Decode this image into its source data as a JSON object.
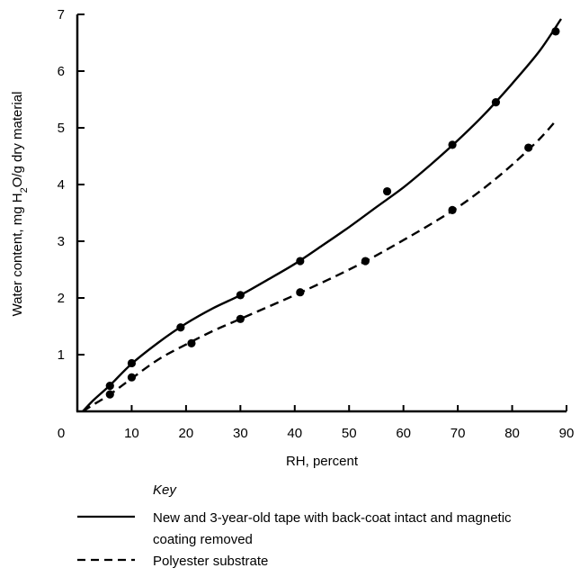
{
  "chart_data": {
    "type": "line",
    "xlabel": "RH, percent",
    "ylabel": "Water content, mg H2O/g dry material",
    "xlim": [
      0,
      90
    ],
    "ylim": [
      0,
      7
    ],
    "x_ticks": [
      "0",
      "10",
      "20",
      "30",
      "40",
      "50",
      "60",
      "70",
      "80",
      "90"
    ],
    "y_ticks": [
      "1",
      "2",
      "3",
      "4",
      "5",
      "6",
      "7"
    ],
    "legend": {
      "heading": "Key",
      "placement": "below"
    },
    "series": [
      {
        "name": "New and 3-year-old tape with back-coat intact and magnetic coating removed",
        "style": "solid",
        "color": "#000000",
        "points": [
          [
            6,
            0.45
          ],
          [
            10,
            0.85
          ],
          [
            19,
            1.48
          ],
          [
            30,
            2.05
          ],
          [
            41,
            2.65
          ],
          [
            57,
            3.88
          ],
          [
            69,
            4.7
          ],
          [
            77,
            5.45
          ],
          [
            88,
            6.7
          ]
        ],
        "curve": [
          [
            1,
            0.0
          ],
          [
            3,
            0.2
          ],
          [
            6,
            0.46
          ],
          [
            10,
            0.84
          ],
          [
            15,
            1.22
          ],
          [
            20,
            1.55
          ],
          [
            25,
            1.82
          ],
          [
            30,
            2.05
          ],
          [
            35,
            2.32
          ],
          [
            40,
            2.6
          ],
          [
            45,
            2.92
          ],
          [
            50,
            3.25
          ],
          [
            55,
            3.6
          ],
          [
            60,
            3.95
          ],
          [
            65,
            4.35
          ],
          [
            70,
            4.78
          ],
          [
            75,
            5.25
          ],
          [
            80,
            5.78
          ],
          [
            85,
            6.35
          ],
          [
            89,
            6.92
          ]
        ]
      },
      {
        "name": "Polyester substrate",
        "style": "dashed",
        "color": "#000000",
        "points": [
          [
            6,
            0.3
          ],
          [
            10,
            0.6
          ],
          [
            21,
            1.2
          ],
          [
            30,
            1.63
          ],
          [
            41,
            2.1
          ],
          [
            53,
            2.65
          ],
          [
            69,
            3.55
          ],
          [
            83,
            4.65
          ]
        ],
        "curve": [
          [
            1,
            0.0
          ],
          [
            3,
            0.12
          ],
          [
            6,
            0.3
          ],
          [
            10,
            0.58
          ],
          [
            15,
            0.92
          ],
          [
            20,
            1.18
          ],
          [
            25,
            1.42
          ],
          [
            30,
            1.63
          ],
          [
            35,
            1.84
          ],
          [
            40,
            2.05
          ],
          [
            45,
            2.27
          ],
          [
            50,
            2.5
          ],
          [
            55,
            2.75
          ],
          [
            60,
            3.02
          ],
          [
            65,
            3.3
          ],
          [
            70,
            3.6
          ],
          [
            75,
            3.95
          ],
          [
            80,
            4.35
          ],
          [
            85,
            4.8
          ],
          [
            88,
            5.12
          ]
        ]
      }
    ]
  }
}
